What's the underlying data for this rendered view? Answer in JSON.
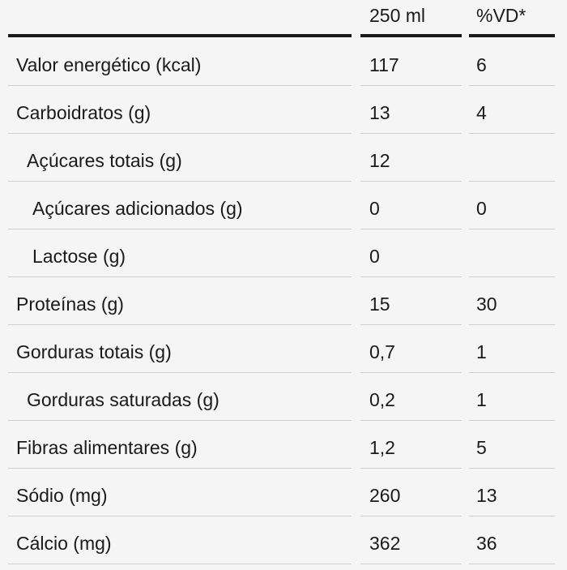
{
  "header": {
    "serving_label": "250 ml",
    "vd_label": "%VD*"
  },
  "rows": [
    {
      "name": "Valor energético (kcal)",
      "serving": "117",
      "vd": "6",
      "indent": 0
    },
    {
      "name": "Carboidratos (g)",
      "serving": "13",
      "vd": "4",
      "indent": 0
    },
    {
      "name": "Açúcares totais (g)",
      "serving": "12",
      "vd": "",
      "indent": 1
    },
    {
      "name": "Açúcares adicionados (g)",
      "serving": "0",
      "vd": "0",
      "indent": 2
    },
    {
      "name": "Lactose (g)",
      "serving": "0",
      "vd": "",
      "indent": 2
    },
    {
      "name": "Proteínas (g)",
      "serving": "15",
      "vd": "30",
      "indent": 0
    },
    {
      "name": "Gorduras totais (g)",
      "serving": "0,7",
      "vd": "1",
      "indent": 0
    },
    {
      "name": "Gorduras saturadas (g)",
      "serving": "0,2",
      "vd": "1",
      "indent": 1
    },
    {
      "name": "Fibras alimentares (g)",
      "serving": "1,2",
      "vd": "5",
      "indent": 0
    },
    {
      "name": "Sódio (mg)",
      "serving": "260",
      "vd": "13",
      "indent": 0
    },
    {
      "name": "Cálcio (mg)",
      "serving": "362",
      "vd": "36",
      "indent": 0
    }
  ]
}
